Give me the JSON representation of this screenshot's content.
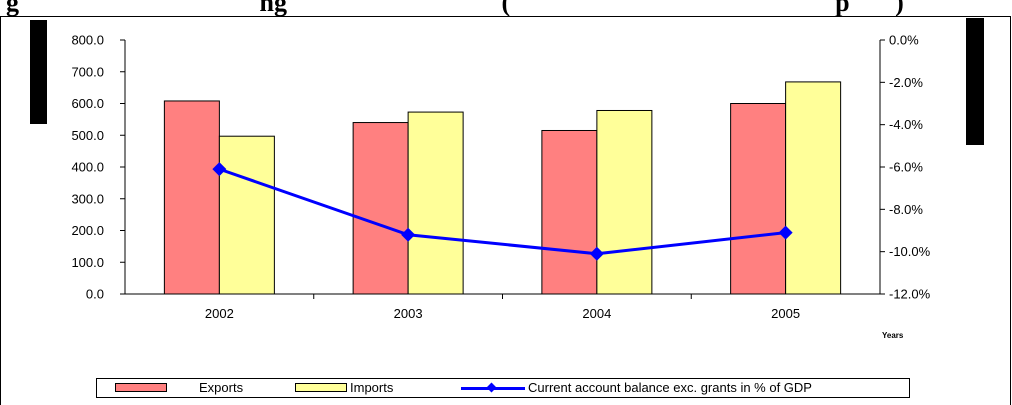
{
  "title_partial": "g                                     ng                                 (                                                  p       )",
  "chart_data": {
    "type": "bar+line",
    "categories": [
      "2002",
      "2003",
      "2004",
      "2005"
    ],
    "series": [
      {
        "name": "Exports",
        "type": "bar",
        "axis": "left",
        "values": [
          608,
          540,
          515,
          600
        ],
        "color": "#FF8080"
      },
      {
        "name": "Imports",
        "type": "bar",
        "axis": "left",
        "values": [
          497,
          573,
          578,
          668
        ],
        "color": "#FFFF99"
      },
      {
        "name": "Current account balance exc. grants in % of GDP",
        "type": "line",
        "axis": "right",
        "values": [
          -6.1,
          -9.2,
          -10.1,
          -9.1
        ],
        "color": "#0000FF"
      }
    ],
    "y_left": {
      "ylim": [
        0,
        800
      ],
      "ticks": [
        "0.0",
        "100.0",
        "200.0",
        "300.0",
        "400.0",
        "500.0",
        "600.0",
        "700.0",
        "800.0"
      ]
    },
    "y_right": {
      "ylim": [
        -12,
        0
      ],
      "ticks": [
        "-12.0%",
        "-10.0%",
        "-8.0%",
        "-6.0%",
        "-4.0%",
        "-2.0%",
        "0.0%"
      ]
    },
    "xlabel": "Years",
    "legend": "bottom",
    "grid": false
  },
  "legend": {
    "exports_label": "Exports",
    "imports_label": "Imports",
    "balance_label": "Current account balance exc. grants in % of GDP"
  }
}
